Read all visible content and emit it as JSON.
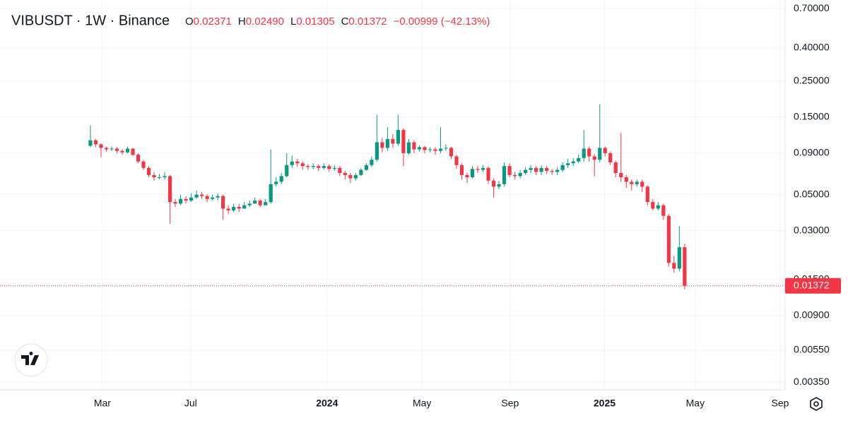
{
  "header": {
    "symbol": "VIBUSDT · 1W · Binance",
    "ohlc": [
      {
        "label": "O",
        "value": "0.02371"
      },
      {
        "label": "H",
        "value": "0.02490"
      },
      {
        "label": "L",
        "value": "0.01305"
      },
      {
        "label": "C",
        "value": "0.01372"
      }
    ],
    "change": "−0.00999 (−42.13%)"
  },
  "chart_data": {
    "type": "candlestick",
    "log_scale": true,
    "grid": true,
    "up_color": "#089981",
    "down_color": "#f23645",
    "ylim": [
      0.00314,
      0.79
    ],
    "yticks": [
      {
        "value": 0.7,
        "label": "0.70000"
      },
      {
        "value": 0.4,
        "label": "0.40000"
      },
      {
        "value": 0.25,
        "label": "0.25000"
      },
      {
        "value": 0.15,
        "label": "0.15000"
      },
      {
        "value": 0.09,
        "label": "0.09000"
      },
      {
        "value": 0.05,
        "label": "0.05000"
      },
      {
        "value": 0.03,
        "label": "0.03000"
      },
      {
        "value": 0.015,
        "label": "0.01500"
      },
      {
        "value": 0.009,
        "label": "0.00900"
      },
      {
        "value": 0.0055,
        "label": "0.00550"
      },
      {
        "value": 0.0035,
        "label": "0.00350"
      }
    ],
    "xlim": [
      -17.04,
      130.8
    ],
    "xticks": [
      {
        "value": 2.26,
        "label": "Mar"
      },
      {
        "value": 18.9,
        "label": "Jul"
      },
      {
        "value": 44.6,
        "label": "2024"
      },
      {
        "value": 62.5,
        "label": "May"
      },
      {
        "value": 79.1,
        "label": "Sep"
      },
      {
        "value": 96.9,
        "label": "2025"
      },
      {
        "value": 114.0,
        "label": "May"
      },
      {
        "value": 130.0,
        "label": "Sep"
      }
    ],
    "last_price": {
      "value": 0.01372,
      "label": "0.01372"
    },
    "open": [
      0.1,
      0.108,
      0.102,
      0.097,
      0.095,
      0.096,
      0.093,
      0.091,
      0.096,
      0.088,
      0.08,
      0.073,
      0.066,
      0.064,
      0.064,
      0.065,
      0.045,
      0.044,
      0.047,
      0.046,
      0.048,
      0.05,
      0.049,
      0.047,
      0.048,
      0.049,
      0.041,
      0.04,
      0.042,
      0.041,
      0.043,
      0.044,
      0.046,
      0.043,
      0.045,
      0.058,
      0.06,
      0.065,
      0.076,
      0.08,
      0.078,
      0.075,
      0.074,
      0.075,
      0.073,
      0.075,
      0.072,
      0.073,
      0.068,
      0.066,
      0.063,
      0.066,
      0.071,
      0.076,
      0.082,
      0.105,
      0.097,
      0.11,
      0.103,
      0.125,
      0.09,
      0.105,
      0.095,
      0.098,
      0.094,
      0.095,
      0.093,
      0.096,
      0.097,
      0.086,
      0.076,
      0.066,
      0.064,
      0.072,
      0.071,
      0.073,
      0.061,
      0.056,
      0.058,
      0.075,
      0.066,
      0.065,
      0.068,
      0.071,
      0.073,
      0.069,
      0.073,
      0.07,
      0.069,
      0.071,
      0.076,
      0.078,
      0.08,
      0.084,
      0.096,
      0.086,
      0.082,
      0.097,
      0.09,
      0.079,
      0.068,
      0.064,
      0.06,
      0.058,
      0.06,
      0.056,
      0.045,
      0.041,
      0.043,
      0.037,
      0.019,
      0.0175,
      0.02371
    ],
    "high": [
      0.133,
      0.11,
      0.104,
      0.099,
      0.099,
      0.098,
      0.095,
      0.099,
      0.097,
      0.09,
      0.082,
      0.075,
      0.069,
      0.067,
      0.069,
      0.066,
      0.047,
      0.05,
      0.049,
      0.051,
      0.053,
      0.052,
      0.05,
      0.05,
      0.051,
      0.05,
      0.043,
      0.044,
      0.044,
      0.045,
      0.046,
      0.048,
      0.047,
      0.047,
      0.095,
      0.064,
      0.068,
      0.09,
      0.087,
      0.083,
      0.08,
      0.077,
      0.078,
      0.077,
      0.078,
      0.077,
      0.076,
      0.075,
      0.07,
      0.068,
      0.068,
      0.073,
      0.078,
      0.086,
      0.155,
      0.112,
      0.13,
      0.118,
      0.155,
      0.128,
      0.11,
      0.108,
      0.101,
      0.1,
      0.098,
      0.098,
      0.13,
      0.102,
      0.099,
      0.088,
      0.078,
      0.068,
      0.075,
      0.075,
      0.076,
      0.075,
      0.063,
      0.061,
      0.079,
      0.078,
      0.069,
      0.071,
      0.074,
      0.076,
      0.075,
      0.076,
      0.075,
      0.072,
      0.074,
      0.079,
      0.083,
      0.084,
      0.088,
      0.125,
      0.099,
      0.089,
      0.18,
      0.099,
      0.092,
      0.081,
      0.12,
      0.066,
      0.062,
      0.062,
      0.062,
      0.057,
      0.047,
      0.045,
      0.044,
      0.038,
      0.021,
      0.032,
      0.0249
    ],
    "low": [
      0.098,
      0.098,
      0.085,
      0.092,
      0.093,
      0.09,
      0.088,
      0.09,
      0.086,
      0.078,
      0.071,
      0.064,
      0.061,
      0.062,
      0.062,
      0.033,
      0.042,
      0.043,
      0.044,
      0.045,
      0.047,
      0.047,
      0.045,
      0.046,
      0.046,
      0.035,
      0.038,
      0.039,
      0.039,
      0.041,
      0.042,
      0.044,
      0.042,
      0.043,
      0.044,
      0.056,
      0.058,
      0.064,
      0.073,
      0.074,
      0.071,
      0.071,
      0.072,
      0.07,
      0.071,
      0.069,
      0.07,
      0.065,
      0.062,
      0.059,
      0.061,
      0.065,
      0.07,
      0.074,
      0.08,
      0.091,
      0.093,
      0.097,
      0.1,
      0.075,
      0.088,
      0.09,
      0.092,
      0.09,
      0.091,
      0.088,
      0.09,
      0.093,
      0.083,
      0.072,
      0.062,
      0.059,
      0.063,
      0.068,
      0.069,
      0.058,
      0.048,
      0.054,
      0.056,
      0.064,
      0.062,
      0.063,
      0.066,
      0.068,
      0.066,
      0.066,
      0.067,
      0.066,
      0.066,
      0.069,
      0.073,
      0.075,
      0.078,
      0.08,
      0.08,
      0.065,
      0.079,
      0.086,
      0.076,
      0.064,
      0.06,
      0.055,
      0.053,
      0.056,
      0.052,
      0.043,
      0.04,
      0.04,
      0.035,
      0.018,
      0.0165,
      0.0168,
      0.01305
    ],
    "close": [
      0.108,
      0.102,
      0.097,
      0.095,
      0.096,
      0.093,
      0.091,
      0.096,
      0.088,
      0.08,
      0.073,
      0.066,
      0.064,
      0.064,
      0.065,
      0.045,
      0.044,
      0.047,
      0.046,
      0.048,
      0.05,
      0.049,
      0.047,
      0.048,
      0.049,
      0.041,
      0.04,
      0.042,
      0.041,
      0.043,
      0.044,
      0.046,
      0.043,
      0.045,
      0.058,
      0.06,
      0.065,
      0.076,
      0.08,
      0.078,
      0.075,
      0.074,
      0.075,
      0.073,
      0.075,
      0.072,
      0.073,
      0.068,
      0.066,
      0.063,
      0.066,
      0.071,
      0.076,
      0.082,
      0.105,
      0.097,
      0.11,
      0.103,
      0.125,
      0.09,
      0.105,
      0.095,
      0.098,
      0.094,
      0.095,
      0.093,
      0.096,
      0.097,
      0.086,
      0.076,
      0.066,
      0.064,
      0.072,
      0.071,
      0.073,
      0.061,
      0.056,
      0.058,
      0.075,
      0.066,
      0.065,
      0.068,
      0.071,
      0.073,
      0.069,
      0.073,
      0.07,
      0.069,
      0.071,
      0.076,
      0.078,
      0.08,
      0.084,
      0.096,
      0.086,
      0.082,
      0.097,
      0.09,
      0.079,
      0.068,
      0.064,
      0.06,
      0.058,
      0.06,
      0.056,
      0.045,
      0.041,
      0.043,
      0.037,
      0.019,
      0.0175,
      0.02371,
      0.01372
    ]
  }
}
